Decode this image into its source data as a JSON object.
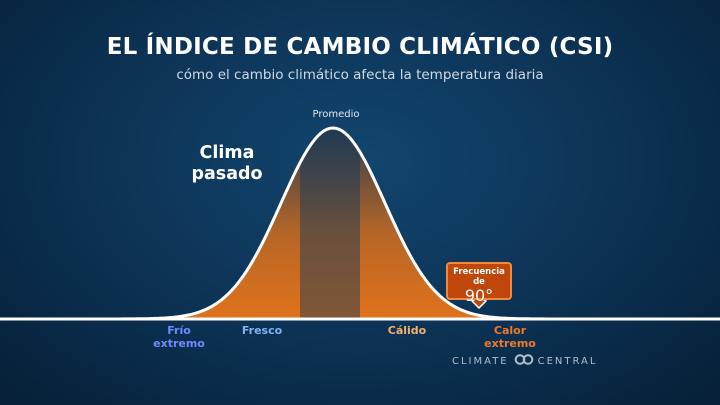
{
  "title": "EL ÍNDICE DE CAMBIO CLIMÁTICO (CSI)",
  "subtitle": "cómo el cambio climático afecta la temperatura diaria",
  "curve": {
    "label": "Clima pasado",
    "label_line1": "Clima",
    "label_line2": "pasado",
    "peak_label": "Promedio"
  },
  "categories": [
    {
      "line1": "Frío",
      "line2": "extremo",
      "color": "#6f88ff"
    },
    {
      "line1": "Fresco",
      "line2": "",
      "color": "#7fb5f0"
    },
    {
      "line1": "Cálido",
      "line2": "",
      "color": "#f5b26a"
    },
    {
      "line1": "Calor",
      "line2": "extremo",
      "color": "#f0782c"
    }
  ],
  "callout": {
    "label": "Frecuencia de",
    "value": "90°"
  },
  "logo": {
    "left_word": "CLIMATE",
    "right_word": "CENTRAL"
  },
  "colors": {
    "background": "#0d3558",
    "cold": "#3f66e6",
    "warm": "#e5741c",
    "curve_stroke": "#ffffff"
  }
}
